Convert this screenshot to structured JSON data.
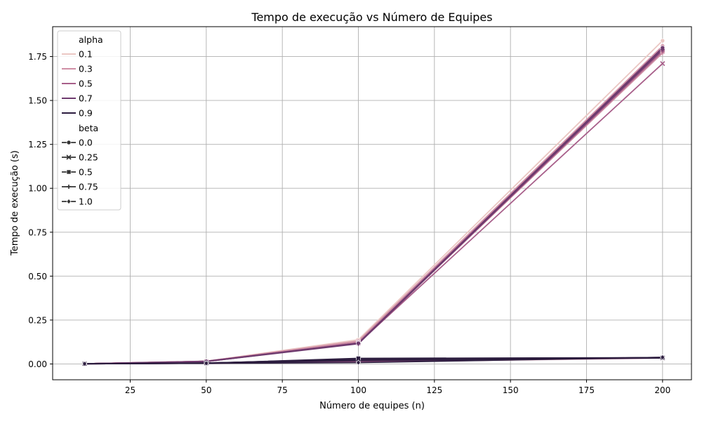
{
  "chart_data": {
    "type": "line",
    "title": "Tempo de execução vs Número de Equipes",
    "xlabel": "Número de equipes (n)",
    "ylabel": "Tempo de execução (s)",
    "xlim": [
      -0.5,
      209.5
    ],
    "ylim": [
      -0.09,
      1.92
    ],
    "xticks": [
      25,
      50,
      75,
      100,
      125,
      150,
      175,
      200
    ],
    "yticks": [
      0.0,
      0.25,
      0.5,
      0.75,
      1.0,
      1.25,
      1.5,
      1.75
    ],
    "grid": true,
    "legend_placement": "top-left",
    "hue_title": "alpha",
    "style_title": "beta",
    "hue_levels": [
      {
        "label": "0.1",
        "color": "#ebc7c3"
      },
      {
        "label": "0.3",
        "color": "#cf8fa5"
      },
      {
        "label": "0.5",
        "color": "#a85f8a"
      },
      {
        "label": "0.7",
        "color": "#6e3a6e"
      },
      {
        "label": "0.9",
        "color": "#2c1d3f"
      }
    ],
    "style_levels": [
      {
        "label": "0.0",
        "marker": "circle"
      },
      {
        "label": "0.25",
        "marker": "x"
      },
      {
        "label": "0.5",
        "marker": "square"
      },
      {
        "label": "0.75",
        "marker": "plus"
      },
      {
        "label": "1.0",
        "marker": "diamond"
      }
    ],
    "x": [
      10,
      50,
      100,
      200
    ],
    "series": [
      {
        "alpha": "0.1",
        "beta": "0.0",
        "values": [
          0.001,
          0.015,
          0.138,
          1.84
        ]
      },
      {
        "alpha": "0.1",
        "beta": "0.25",
        "values": [
          0.001,
          0.016,
          0.132,
          1.8
        ]
      },
      {
        "alpha": "0.1",
        "beta": "0.5",
        "values": [
          0.001,
          0.014,
          0.125,
          1.79
        ]
      },
      {
        "alpha": "0.1",
        "beta": "0.75",
        "values": [
          0.001,
          0.015,
          0.122,
          1.79
        ]
      },
      {
        "alpha": "0.1",
        "beta": "1.0",
        "values": [
          0.001,
          0.004,
          0.01,
          0.036
        ]
      },
      {
        "alpha": "0.3",
        "beta": "0.0",
        "values": [
          0.001,
          0.016,
          0.13,
          1.81
        ]
      },
      {
        "alpha": "0.3",
        "beta": "0.25",
        "values": [
          0.001,
          0.015,
          0.125,
          1.79
        ]
      },
      {
        "alpha": "0.3",
        "beta": "0.5",
        "values": [
          0.001,
          0.014,
          0.122,
          1.78
        ]
      },
      {
        "alpha": "0.3",
        "beta": "0.75",
        "values": [
          0.001,
          0.015,
          0.12,
          1.77
        ]
      },
      {
        "alpha": "0.3",
        "beta": "1.0",
        "values": [
          0.001,
          0.005,
          0.012,
          0.034
        ]
      },
      {
        "alpha": "0.5",
        "beta": "0.0",
        "values": [
          0.001,
          0.015,
          0.12,
          1.8
        ]
      },
      {
        "alpha": "0.5",
        "beta": "0.25",
        "values": [
          0.001,
          0.014,
          0.118,
          1.71
        ]
      },
      {
        "alpha": "0.5",
        "beta": "0.5",
        "values": [
          0.001,
          0.015,
          0.12,
          1.79
        ]
      },
      {
        "alpha": "0.5",
        "beta": "0.75",
        "values": [
          0.001,
          0.014,
          0.118,
          1.78
        ]
      },
      {
        "alpha": "0.5",
        "beta": "1.0",
        "values": [
          0.001,
          0.004,
          0.014,
          0.035
        ]
      },
      {
        "alpha": "0.7",
        "beta": "0.0",
        "values": [
          0.001,
          0.015,
          0.118,
          1.8
        ]
      },
      {
        "alpha": "0.7",
        "beta": "0.25",
        "values": [
          0.001,
          0.006,
          0.02,
          0.034
        ]
      },
      {
        "alpha": "0.7",
        "beta": "0.5",
        "values": [
          0.001,
          0.005,
          0.025,
          0.036
        ]
      },
      {
        "alpha": "0.7",
        "beta": "0.75",
        "values": [
          0.001,
          0.014,
          0.115,
          1.79
        ]
      },
      {
        "alpha": "0.7",
        "beta": "1.0",
        "values": [
          0.001,
          0.004,
          0.018,
          0.037
        ]
      },
      {
        "alpha": "0.9",
        "beta": "0.0",
        "values": [
          0.001,
          0.004,
          0.03,
          0.034
        ]
      },
      {
        "alpha": "0.9",
        "beta": "0.25",
        "values": [
          0.001,
          0.005,
          0.028,
          0.035
        ]
      },
      {
        "alpha": "0.9",
        "beta": "0.5",
        "values": [
          0.001,
          0.004,
          0.032,
          0.036
        ]
      },
      {
        "alpha": "0.9",
        "beta": "0.75",
        "values": [
          0.001,
          0.005,
          0.02,
          0.035
        ]
      },
      {
        "alpha": "0.9",
        "beta": "1.0",
        "values": [
          0.001,
          0.004,
          0.008,
          0.038
        ]
      }
    ]
  }
}
